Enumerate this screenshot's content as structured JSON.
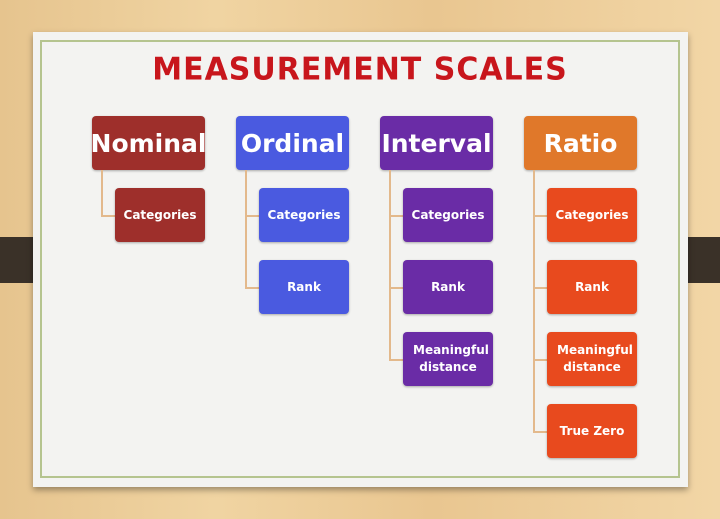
{
  "title": "MEASUREMENT SCALES",
  "columns": [
    {
      "label": "Nominal",
      "color": "#9e2f2b",
      "child_color": "#9e2f2b",
      "items": [
        "Categories"
      ]
    },
    {
      "label": "Ordinal",
      "color": "#4a5ae0",
      "child_color": "#4a5ae0",
      "items": [
        "Categories",
        "Rank"
      ]
    },
    {
      "label": "Interval",
      "color": "#6a2ca6",
      "child_color": "#6a2ca6",
      "items": [
        "Categories",
        "Rank",
        "Meaningful distance"
      ]
    },
    {
      "label": "Ratio",
      "color": "#e0782a",
      "child_color": "#e84a1e",
      "items": [
        "Categories",
        "Rank",
        "Meaningful distance",
        "True Zero"
      ]
    }
  ]
}
